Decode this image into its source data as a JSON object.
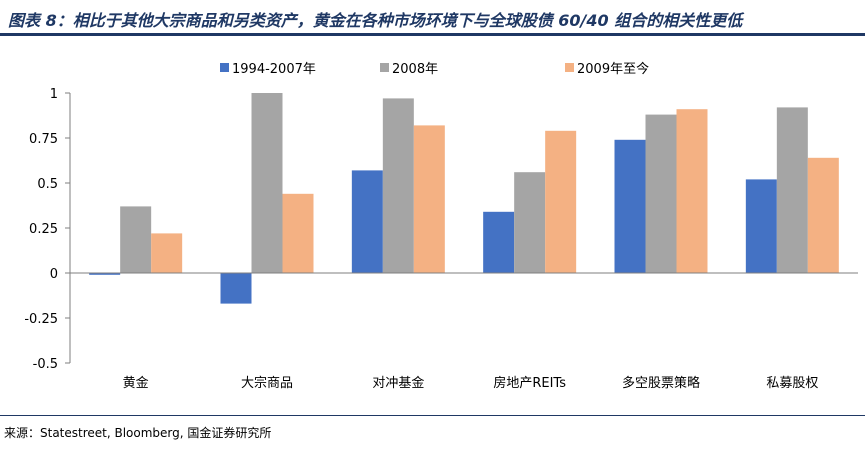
{
  "title": "图表 8：相比于其他大宗商品和另类资产，黄金在各种市场环境下与全球股债 60/40 组合的相关性更低",
  "source": "来源：Statestreet, Bloomberg, 国金证券研究所",
  "chart_data": {
    "type": "bar",
    "categories": [
      "黄金",
      "大宗商品",
      "对冲基金",
      "房地产REITs",
      "多空股票策略",
      "私募股权"
    ],
    "series": [
      {
        "name": "1994-2007年",
        "color": "#4472c4",
        "values": [
          -0.01,
          -0.17,
          0.57,
          0.34,
          0.74,
          0.52
        ]
      },
      {
        "name": "2008年",
        "color": "#a5a5a5",
        "values": [
          0.37,
          1.0,
          0.97,
          0.56,
          0.88,
          0.92
        ]
      },
      {
        "name": "2009年至今",
        "color": "#f4b183",
        "values": [
          0.22,
          0.44,
          0.82,
          0.79,
          0.91,
          0.64
        ]
      }
    ],
    "ylim": [
      -0.5,
      1
    ],
    "yticks": [
      -0.5,
      -0.25,
      0,
      0.25,
      0.5,
      0.75,
      1
    ],
    "ytick_labels": [
      "-0.5",
      "-0.25",
      "0",
      "0.25",
      "0.5",
      "0.75",
      "1"
    ],
    "legend_position": "top",
    "grid": false
  }
}
